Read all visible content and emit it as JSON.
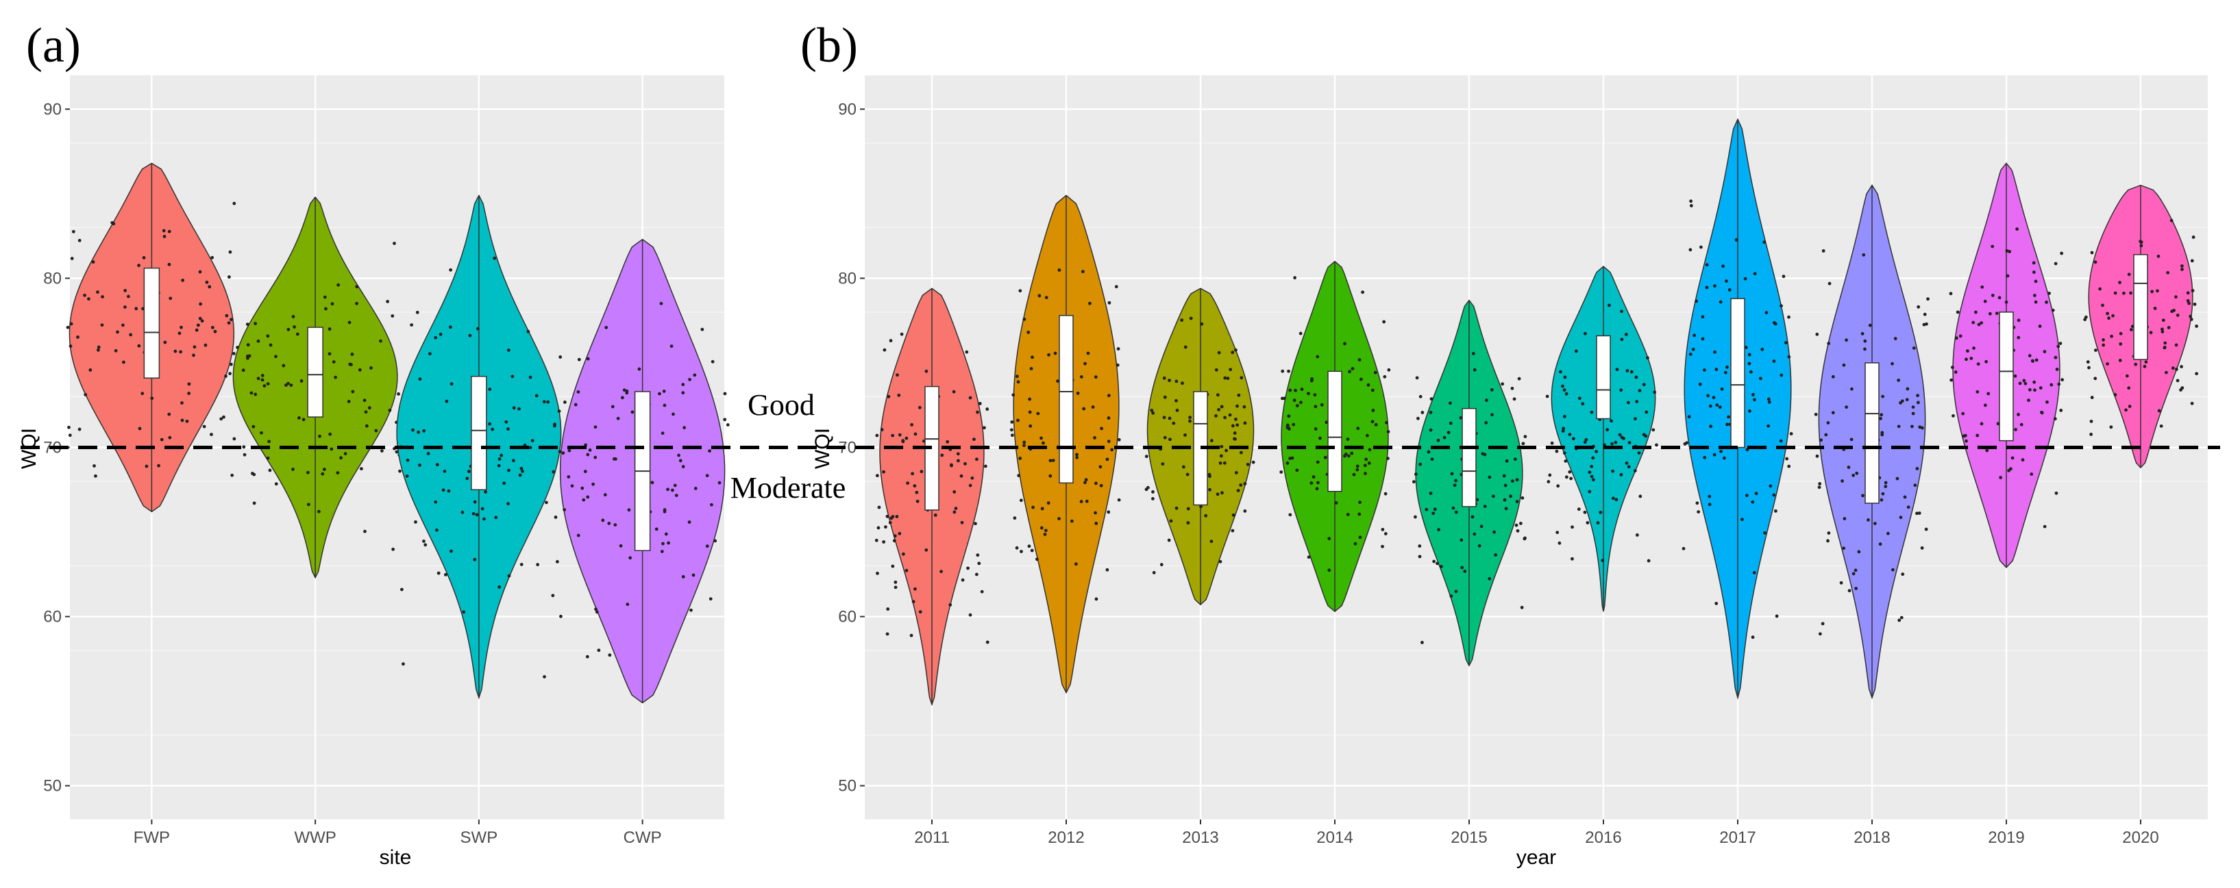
{
  "annotations": {
    "good": "Good",
    "moderate": "Moderate"
  },
  "colors": {
    "panel_bg": "#ebebeb",
    "grid": "#ffffff",
    "site": [
      "#f8766d",
      "#7cae00",
      "#00bfc4",
      "#c77cff"
    ],
    "year": [
      "#f8766d",
      "#d89000",
      "#a3a500",
      "#39b600",
      "#00bf7d",
      "#00bfc4",
      "#00b0f6",
      "#9590ff",
      "#e76bf3",
      "#ff62bc"
    ]
  },
  "chart_data": [
    {
      "type": "violin",
      "panel_label": "(a)",
      "title": "",
      "xlabel": "site",
      "ylabel": "WQI",
      "ylim": [
        48,
        92
      ],
      "yticks": [
        50,
        60,
        70,
        80,
        90
      ],
      "threshold": 70,
      "categories": [
        "FWP",
        "WWP",
        "SWP",
        "CWP"
      ],
      "stats": [
        {
          "min": 66.2,
          "q1": 74.1,
          "median": 76.8,
          "q3": 80.6,
          "max": 86.8
        },
        {
          "min": 62.3,
          "q1": 71.8,
          "median": 74.3,
          "q3": 77.1,
          "max": 84.8
        },
        {
          "min": 55.2,
          "q1": 67.5,
          "median": 71.0,
          "q3": 74.2,
          "max": 84.9
        },
        {
          "min": 54.9,
          "q1": 63.9,
          "median": 68.6,
          "q3": 73.3,
          "max": 82.3
        }
      ]
    },
    {
      "type": "violin",
      "panel_label": "(b)",
      "title": "",
      "xlabel": "year",
      "ylabel": "WQI",
      "ylim": [
        48,
        92
      ],
      "yticks": [
        50,
        60,
        70,
        80,
        90
      ],
      "threshold": 70,
      "categories": [
        "2011",
        "2012",
        "2013",
        "2014",
        "2015",
        "2016",
        "2017",
        "2018",
        "2019",
        "2020"
      ],
      "stats": [
        {
          "min": 54.8,
          "q1": 66.3,
          "median": 70.5,
          "q3": 73.6,
          "max": 79.4
        },
        {
          "min": 55.5,
          "q1": 67.9,
          "median": 73.3,
          "q3": 77.8,
          "max": 84.9
        },
        {
          "min": 60.7,
          "q1": 66.6,
          "median": 71.4,
          "q3": 73.3,
          "max": 79.4
        },
        {
          "min": 60.3,
          "q1": 67.4,
          "median": 70.6,
          "q3": 74.5,
          "max": 81.0
        },
        {
          "min": 57.1,
          "q1": 66.5,
          "median": 68.6,
          "q3": 72.3,
          "max": 78.7
        },
        {
          "min": 60.3,
          "q1": 71.7,
          "median": 73.4,
          "q3": 76.6,
          "max": 80.7
        },
        {
          "min": 55.2,
          "q1": 70.0,
          "median": 73.7,
          "q3": 78.8,
          "max": 89.4
        },
        {
          "min": 55.2,
          "q1": 66.7,
          "median": 72.0,
          "q3": 75.0,
          "max": 85.5
        },
        {
          "min": 62.9,
          "q1": 70.4,
          "median": 74.5,
          "q3": 78.0,
          "max": 86.8
        },
        {
          "min": 68.8,
          "q1": 75.2,
          "median": 79.7,
          "q3": 81.4,
          "max": 85.5
        }
      ]
    }
  ]
}
